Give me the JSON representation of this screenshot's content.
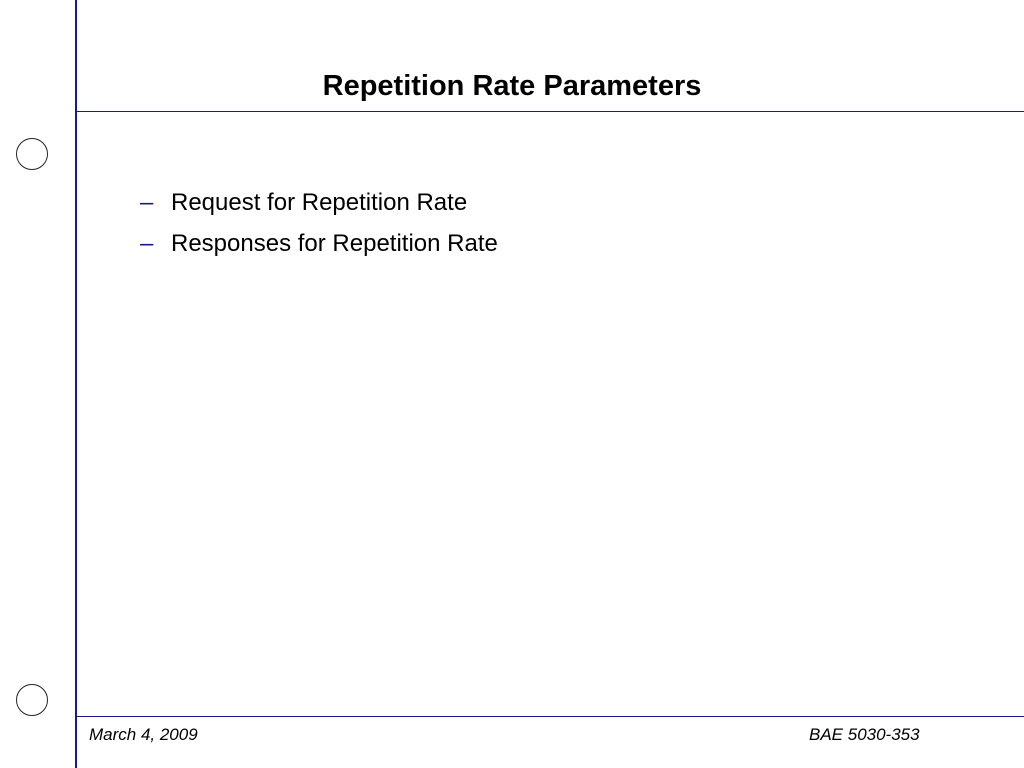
{
  "slide": {
    "title": "Repetition Rate Parameters",
    "bullets": [
      {
        "marker": "–",
        "text": "Request for Repetition Rate"
      },
      {
        "marker": "–",
        "text": "Responses for Repetition Rate"
      }
    ]
  },
  "footer": {
    "date": "March 4, 2009",
    "course": "BAE 5030-353"
  },
  "colors": {
    "rule": "#1a1a8c",
    "text": "#000000",
    "background": "#ffffff"
  }
}
